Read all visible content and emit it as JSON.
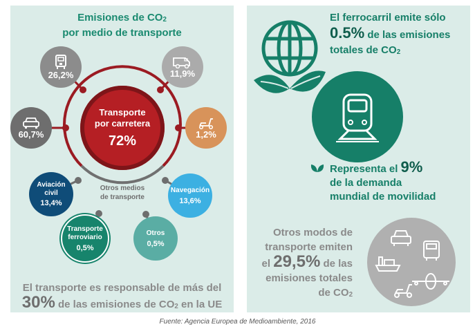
{
  "left": {
    "title_line1": "Emisiones de CO",
    "title_sub": "2",
    "title_line2": "por medio de transporte",
    "center": {
      "label1": "Transporte",
      "label2": "por carretera",
      "value": "72%"
    },
    "road": [
      {
        "name": "truck",
        "icon": "truck-icon",
        "value": "26,2%",
        "color": "#8c8c8c"
      },
      {
        "name": "van",
        "icon": "van-icon",
        "value": "11,9%",
        "color": "#ababab"
      },
      {
        "name": "car",
        "icon": "car-icon",
        "value": "60,7%",
        "color": "#6e6e6e"
      },
      {
        "name": "scooter",
        "icon": "scooter-icon",
        "value": "1,2%",
        "color": "#d8935a"
      }
    ],
    "others_label1": "Otros medios",
    "others_label2": "de transporte",
    "others": [
      {
        "label1": "Aviación",
        "label2": "civil",
        "value": "13,4%",
        "color": "#0f4c78"
      },
      {
        "label1": "Navegación",
        "label2": "",
        "value": "13,6%",
        "color": "#3cb0e2"
      },
      {
        "label1": "Transporte",
        "label2": "ferroviario",
        "value": "0,5%",
        "color": "#17846c"
      },
      {
        "label1": "Otros",
        "label2": "",
        "value": "0,5%",
        "color": "#5aada4"
      }
    ],
    "footer_line1": "El transporte es responsable de más del",
    "footer_big": "30%",
    "footer_line2a": "de las emisiones de CO",
    "footer_sub": "2",
    "footer_line2b": " en la UE"
  },
  "right": {
    "line1": "El ferrocarril emite sólo",
    "big1": "0.5%",
    "line2": " de las emisiones",
    "line3": "totales de CO",
    "sub": "2",
    "rep_a": "Representa el ",
    "rep_big": "9%",
    "rep_line2": "de la demanda",
    "rep_line3": "mundial de movilidad",
    "other_line1": "Otros modos de",
    "other_line2": "transporte emiten",
    "other_a": "el ",
    "other_big": "29,5%",
    "other_b": " de las",
    "other_line4": "emisiones totales",
    "other_line5": "de CO",
    "other_sub": "2"
  },
  "source": "Fuente: Agencia Europea de Medioambiente, 2016",
  "colors": {
    "panel": "#dbece8",
    "teal": "#167f68",
    "red": "#b51f24",
    "ring": "#9b1b22",
    "gray": "#8a8a8a"
  }
}
